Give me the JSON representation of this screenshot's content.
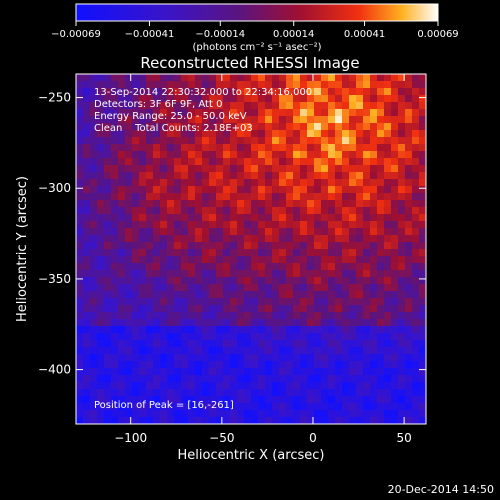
{
  "chart_data": {
    "type": "heatmap",
    "title": "Reconstructed RHESSI Image",
    "xlabel": "Heliocentric X (arcsec)",
    "ylabel": "Heliocentric Y (arcsec)",
    "xlim": [
      -130,
      62
    ],
    "ylim": [
      -430,
      -237
    ],
    "xticks": [
      -100,
      -50,
      0,
      50
    ],
    "xtick_labels": [
      "−100",
      "−50",
      "0",
      "50"
    ],
    "yticks": [
      -250,
      -300,
      -350,
      -400
    ],
    "ytick_labels": [
      "−250",
      "−300",
      "−350",
      "−400"
    ],
    "colorbar": {
      "colormap": "red-temperature",
      "range": [
        -0.00069,
        0.00069
      ],
      "ticks": [
        -0.00069,
        -0.00041,
        -0.00014,
        0.00014,
        0.00041,
        0.00069
      ],
      "tick_labels": [
        "−0.00069",
        "−0.00041",
        "−0.00014",
        "0.00014",
        "0.00041",
        "0.00069"
      ],
      "unit_label": "(photons cm⁻² s⁻¹ asec⁻²)"
    },
    "annotations": [
      "13-Sep-2014 22:30:32.000 to 22:34:16.000",
      "Detectors: 3F 6F 9F, Att 0",
      "Energy Range: 25.0 - 50.0 keV",
      "Clean    Total Counts: 2.18E+03"
    ],
    "peak_label": "Position of Peak = [16,-261]",
    "peak_position": [
      16,
      -261
    ],
    "colors": {
      "low": "#1a1aff",
      "mid": "#5a1a8c",
      "high": "#ffffff"
    }
  },
  "footer": {
    "date_stamp": "20-Dec-2014 14:50"
  }
}
